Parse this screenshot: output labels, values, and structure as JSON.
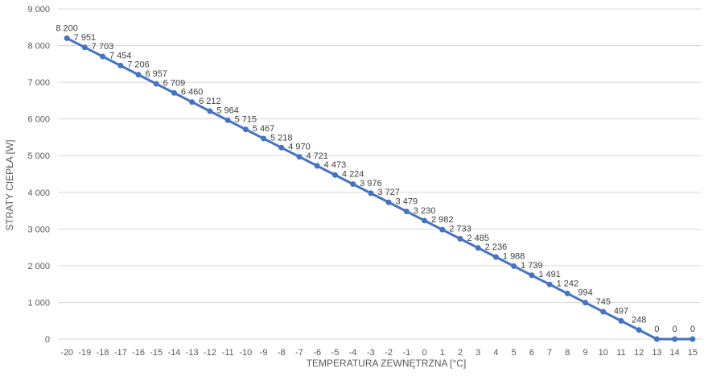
{
  "chart_data": {
    "type": "line",
    "xlabel": "TEMPERATURA ZEWNĘTRZNA [°C]",
    "ylabel": "STRATY CIEPŁA [W]",
    "ylim": [
      0,
      9000
    ],
    "y_ticks": [
      "0",
      "1 000",
      "2 000",
      "3 000",
      "4 000",
      "5 000",
      "6 000",
      "7 000",
      "8 000",
      "9 000"
    ],
    "grid": true,
    "legend": "none",
    "x": [
      -20,
      -19,
      -18,
      -17,
      -16,
      -15,
      -14,
      -13,
      -12,
      -11,
      -10,
      -9,
      -8,
      -7,
      -6,
      -5,
      -4,
      -3,
      -2,
      -1,
      0,
      1,
      2,
      3,
      4,
      5,
      6,
      7,
      8,
      9,
      10,
      11,
      12,
      13,
      14,
      15
    ],
    "series": [
      {
        "color": "#4472c4",
        "values": [
          8200,
          7951,
          7703,
          7454,
          7206,
          6957,
          6709,
          6460,
          6212,
          5964,
          5715,
          5467,
          5218,
          4970,
          4721,
          4473,
          4224,
          3976,
          3727,
          3479,
          3230,
          2982,
          2733,
          2485,
          2236,
          1988,
          1739,
          1491,
          1242,
          994,
          745,
          497,
          248,
          0,
          0,
          0
        ],
        "labels": [
          "8 200",
          "7 951",
          "7 703",
          "7 454",
          "7 206",
          "6 957",
          "6 709",
          "6 460",
          "6 212",
          "5 964",
          "5 715",
          "5 467",
          "5 218",
          "4 970",
          "4 721",
          "4 473",
          "4 224",
          "3 976",
          "3 727",
          "3 479",
          "3 230",
          "2 982",
          "2 733",
          "2 485",
          "2 236",
          "1 988",
          "1 739",
          "1 491",
          "1 242",
          "994",
          "745",
          "497",
          "248",
          "0",
          "0",
          "0"
        ]
      }
    ]
  }
}
